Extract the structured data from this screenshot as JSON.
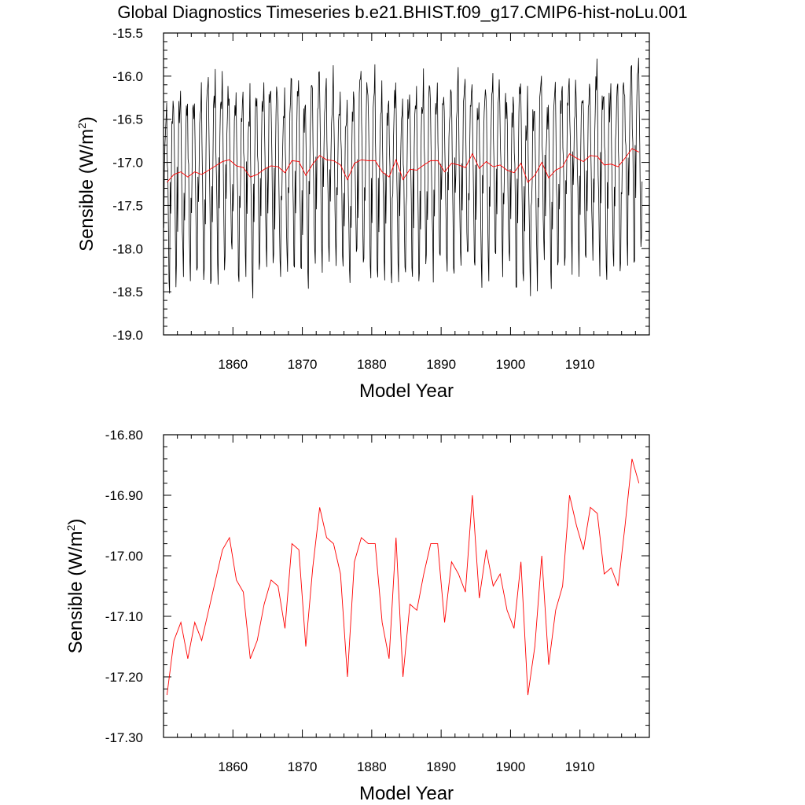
{
  "title": "Global Diagnostics Timeseries b.e21.BHIST.f09_g17.CMIP6-hist-noLu.001",
  "colors": {
    "monthly": "#000000",
    "annual": "#ff0000",
    "axis": "#000000"
  },
  "chart_data": [
    {
      "type": "line",
      "xlabel": "Model Year",
      "ylabel": "Sensible (W/m²)",
      "ylabel_base": "Sensible (W/m",
      "ylabel_sup": "2",
      "ylabel_end": ")",
      "xlim": [
        1850,
        1920
      ],
      "ylim": [
        -19.0,
        -15.5
      ],
      "xticks": [
        1860,
        1870,
        1880,
        1890,
        1900,
        1910
      ],
      "xtick_labels": [
        "1860",
        "1870",
        "1880",
        "1890",
        "1900",
        "1910"
      ],
      "yticks": [
        -15.5,
        -16.0,
        -16.5,
        -17.0,
        -17.5,
        -18.0,
        -18.5,
        -19.0
      ],
      "ytick_labels": [
        "-15.5",
        "-16.0",
        "-16.5",
        "-17.0",
        "-17.5",
        "-18.0",
        "-18.5",
        "-19.0"
      ],
      "grid": false,
      "series": [
        {
          "kind": "monthly",
          "color": "#000000",
          "x_start": 1850.04,
          "x_step": 0.08333,
          "monthly_mean_cycle": [
            -17.69,
            -17.05,
            -16.55,
            -16.46,
            -16.39,
            -16.25,
            -16.77,
            -17.21,
            -17.71,
            -18.27,
            -18.36,
            -17.29
          ],
          "note_values_from": "annual series"
        },
        {
          "kind": "annual",
          "color": "#ff0000",
          "x_start": 1850.5,
          "x_step": 1,
          "values": [
            -17.23,
            -17.14,
            -17.11,
            -17.17,
            -17.11,
            -17.14,
            -17.09,
            -17.04,
            -16.99,
            -16.97,
            -17.04,
            -17.06,
            -17.17,
            -17.14,
            -17.08,
            -17.04,
            -17.05,
            -17.12,
            -16.98,
            -16.99,
            -17.15,
            -17.02,
            -16.92,
            -16.97,
            -16.98,
            -17.03,
            -17.2,
            -17.01,
            -16.97,
            -16.98,
            -16.98,
            -17.11,
            -17.17,
            -16.97,
            -17.2,
            -17.08,
            -17.09,
            -17.03,
            -16.98,
            -16.98,
            -17.11,
            -17.01,
            -17.03,
            -17.06,
            -16.9,
            -17.07,
            -16.99,
            -17.05,
            -17.03,
            -17.09,
            -17.12,
            -17.01,
            -17.23,
            -17.15,
            -17.0,
            -17.18,
            -17.09,
            -17.05,
            -16.9,
            -16.95,
            -16.99,
            -16.92,
            -16.93,
            -17.03,
            -17.02,
            -17.05,
            -16.95,
            -16.84,
            -16.88
          ]
        }
      ]
    },
    {
      "type": "line",
      "xlabel": "Model Year",
      "ylabel": "Sensible (W/m²)",
      "ylabel_base": "Sensible (W/m",
      "ylabel_sup": "2",
      "ylabel_end": ")",
      "xlim": [
        1850,
        1920
      ],
      "ylim": [
        -17.3,
        -16.8
      ],
      "xticks": [
        1860,
        1870,
        1880,
        1890,
        1900,
        1910
      ],
      "xtick_labels": [
        "1860",
        "1870",
        "1880",
        "1890",
        "1900",
        "1910"
      ],
      "yticks": [
        -16.8,
        -16.9,
        -17.0,
        -17.1,
        -17.2,
        -17.3
      ],
      "ytick_labels": [
        "-16.80",
        "-16.90",
        "-17.00",
        "-17.10",
        "-17.20",
        "-17.30"
      ],
      "grid": false,
      "series": [
        {
          "kind": "annual",
          "color": "#ff0000",
          "x_start": 1850.5,
          "x_step": 1,
          "values": [
            -17.23,
            -17.14,
            -17.11,
            -17.17,
            -17.11,
            -17.14,
            -17.09,
            -17.04,
            -16.99,
            -16.97,
            -17.04,
            -17.06,
            -17.17,
            -17.14,
            -17.08,
            -17.04,
            -17.05,
            -17.12,
            -16.98,
            -16.99,
            -17.15,
            -17.02,
            -16.92,
            -16.97,
            -16.98,
            -17.03,
            -17.2,
            -17.01,
            -16.97,
            -16.98,
            -16.98,
            -17.11,
            -17.17,
            -16.97,
            -17.2,
            -17.08,
            -17.09,
            -17.03,
            -16.98,
            -16.98,
            -17.11,
            -17.01,
            -17.03,
            -17.06,
            -16.9,
            -17.07,
            -16.99,
            -17.05,
            -17.03,
            -17.09,
            -17.12,
            -17.01,
            -17.23,
            -17.15,
            -17.0,
            -17.18,
            -17.09,
            -17.05,
            -16.9,
            -16.95,
            -16.99,
            -16.92,
            -16.93,
            -17.03,
            -17.02,
            -17.05,
            -16.95,
            -16.84,
            -16.88
          ]
        }
      ]
    }
  ]
}
